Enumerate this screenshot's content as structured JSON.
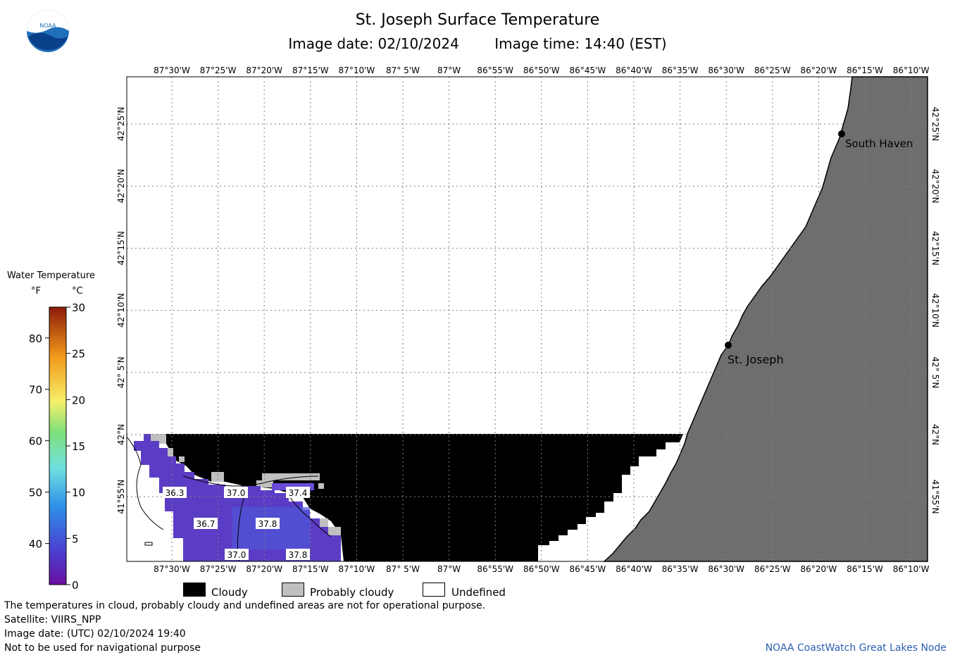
{
  "header": {
    "title": "St. Joseph Surface Temperature",
    "image_date": "Image date: 02/10/2024",
    "image_time": "Image time: 14:40 (EST)"
  },
  "logo": {
    "text": "NOAA"
  },
  "map": {
    "lon_labels": [
      "87°30'W",
      "87°25'W",
      "87°20'W",
      "87°15'W",
      "87°10'W",
      "87° 5'W",
      "87°W",
      "86°55'W",
      "86°50'W",
      "86°45'W",
      "86°40'W",
      "86°35'W",
      "86°30'W",
      "86°25'W",
      "86°20'W",
      "86°15'W",
      "86°10'W"
    ],
    "lat_labels": [
      "42°25'N",
      "42°20'N",
      "42°15'N",
      "42°10'N",
      "42° 5'N",
      "42°N",
      "41°55'N"
    ],
    "places": [
      {
        "name": "South Haven"
      },
      {
        "name": "St. Joseph"
      }
    ],
    "temperatures": [
      "36.3",
      "37.0",
      "37.4",
      "36.7",
      "37.8",
      "37.0",
      "37.8"
    ]
  },
  "legend": {
    "title": "Water Temperature",
    "unit_f": "°F",
    "unit_c": "°C",
    "f_ticks": [
      "80",
      "70",
      "60",
      "50",
      "40"
    ],
    "c_ticks": [
      "30",
      "25",
      "20",
      "15",
      "10",
      "5",
      "0"
    ]
  },
  "key": {
    "cloudy": "Cloudy",
    "probably_cloudy": "Probably cloudy",
    "undefined": "Undefined"
  },
  "footer": {
    "line1": "The temperatures in cloud, probably cloudy and undefined areas are not for operational purpose.",
    "line2": "Satellite: VIIRS_NPP",
    "line3": "Image date: (UTC) 02/10/2024  19:40",
    "line4": "Not to be used for navigational purpose",
    "credit": "NOAA CoastWatch Great Lakes Node"
  },
  "colors": {
    "land": "#6e6e6e",
    "cloudy": "#000000",
    "probably_cloudy": "#c0c0c0",
    "water_cold": "#5a3fc8",
    "grid": "#7f7f7f",
    "credit": "#2b5fb0"
  }
}
